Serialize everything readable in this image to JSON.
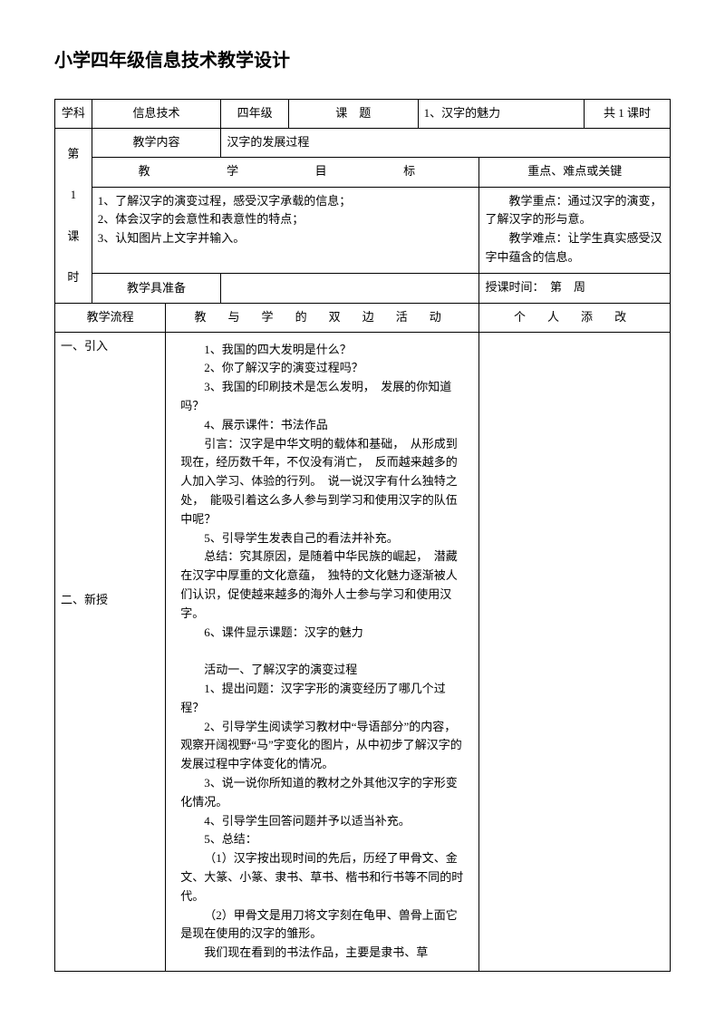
{
  "title": "小学四年级信息技术教学设计",
  "header": {
    "subject_label": "学科",
    "subject": "信息技术",
    "grade": "四年级",
    "topic_label": "课　题",
    "topic": "1、汉字的魅力",
    "period": "共 1 课时"
  },
  "section": {
    "lesson_col": [
      "第",
      "1",
      "课",
      "时"
    ],
    "content_label": "教学内容",
    "content": "汉字的发展过程",
    "obj_header": "教　　学　　目　　标",
    "keypoint_header": "重点、难点或关键",
    "objectives": "1、了解汉字的演变过程，感受汉字承载的信息；\n2、体会汉字的会意性和表意性的特点；\n3、认知图片上文字并输入。",
    "keypoints": "　　教学重点：通过汉字的演变，了解汉字的形与意。\n　　教学难点：让学生真实感受汉字中蕴含的信息。",
    "tools_label": "教学具准备",
    "time_label": "授课时间：　第　周"
  },
  "flow": {
    "flow_label": "教学流程",
    "activity_label": "教 与 学 的 双 边 活 动",
    "notes_label": "个 人 添 改",
    "phase1": "一、引入",
    "phase2": "二、新授",
    "body": [
      "1、我国的四大发明是什么？",
      "2、你了解汉字的演变过程吗？",
      "3、我国的印刷技术是怎么发明，　发展的你知道吗？",
      "4、展示课件：书法作品",
      "引言：汉字是中华文明的载体和基础，　从形成到现在，经历数千年，不仅没有消亡，　反而越来越多的人加入学习、体验的行列。　说一说汉字有什么独特之处，　能吸引着这么多人参与到学习和使用汉字的队伍中呢？",
      "5、引导学生发表自己的看法并补充。",
      "总结：究其原因，是随着中华民族的崛起，　潜藏在汉字中厚重的文化意蕴，　独特的文化魅力逐渐被人们认识，促使越来越多的海外人士参与学习和使用汉字。",
      "6、课件显示课题：汉字的魅力",
      "",
      "活动一、了解汉字的演变过程",
      "1、提出问题：汉字字形的演变经历了哪几个过程？",
      "2、引导学生阅读学习教材中“导语部分”的内容，观察开阔视野“马”字变化的图片，从中初步了解汉字的发展过程中字体变化的情况。",
      "3、说一说你所知道的教材之外其他汉字的字形变化情况。",
      "4、引导学生回答问题并予以适当补充。",
      "5、总结：",
      "（1）汉字按出现时间的先后，历经了甲骨文、金文、大篆、小篆、隶书、草书、楷书和行书等不同的时代。",
      "（2）甲骨文是用刀将文字刻在龟甲、兽骨上面它是现在使用的汉字的雏形。",
      "我们现在看到的书法作品，主要是隶书、草"
    ]
  }
}
